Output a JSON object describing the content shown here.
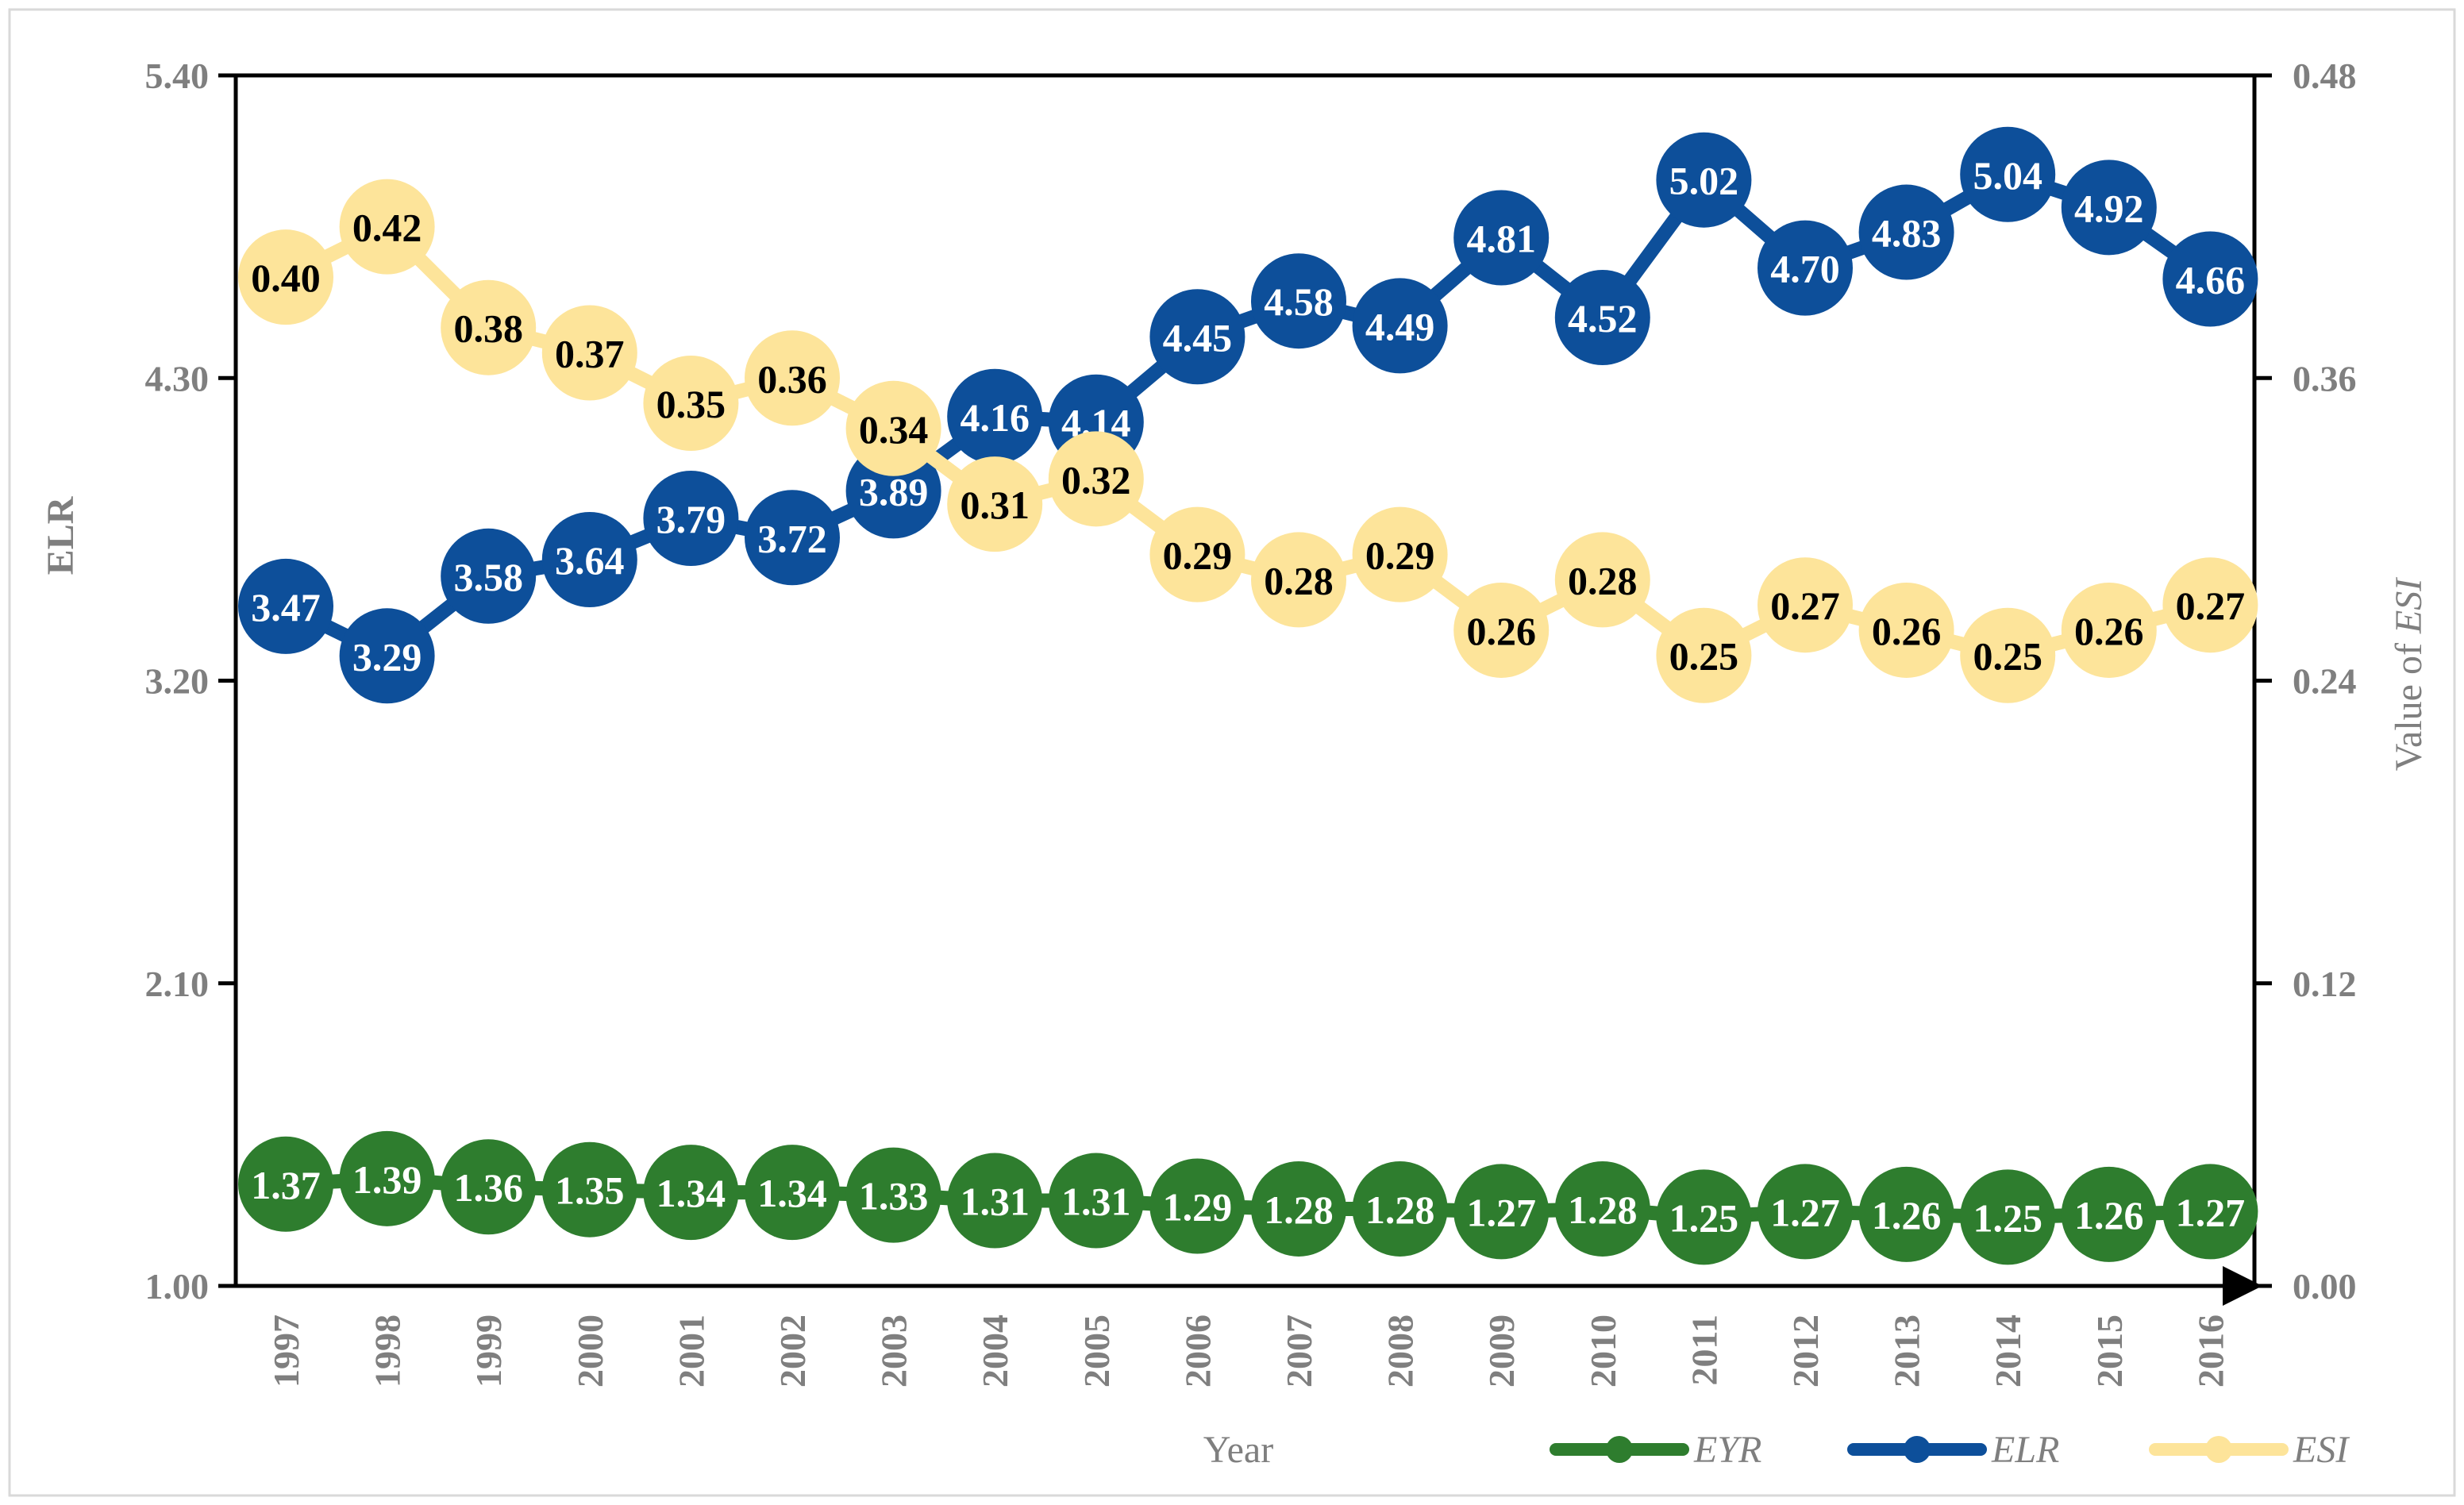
{
  "chart_data": {
    "type": "line",
    "categories": [
      "1997",
      "1998",
      "1999",
      "2000",
      "2001",
      "2002",
      "2003",
      "2004",
      "2005",
      "2006",
      "2007",
      "2008",
      "2009",
      "2010",
      "2011",
      "2012",
      "2013",
      "2014",
      "2015",
      "2016"
    ],
    "xlabel": "Year",
    "ylabel": "ELR",
    "ylabel_right_prefix": "Value of ",
    "ylabel_right_emph": "ESI",
    "y_left": {
      "min": 1.0,
      "max": 5.4,
      "ticks": [
        "1.00",
        "2.10",
        "3.20",
        "4.30",
        "5.40"
      ]
    },
    "y_right": {
      "min": 0.0,
      "max": 0.48,
      "ticks": [
        "0.00",
        "0.12",
        "0.24",
        "0.36",
        "0.48"
      ]
    },
    "series": [
      {
        "name": "EYR",
        "axis": "left",
        "color": "#2e7d2e",
        "label_color": "#ffffff",
        "values": [
          1.37,
          1.39,
          1.36,
          1.35,
          1.34,
          1.34,
          1.33,
          1.31,
          1.31,
          1.29,
          1.28,
          1.28,
          1.27,
          1.28,
          1.25,
          1.27,
          1.26,
          1.25,
          1.26,
          1.27
        ],
        "labels": [
          "1.37",
          "1.39",
          "1.36",
          "1.35",
          "1.34",
          "1.34",
          "1.33",
          "1.31",
          "1.31",
          "1.29",
          "1.28",
          "1.28",
          "1.27",
          "1.28",
          "1.25",
          "1.27",
          "1.26",
          "1.25",
          "1.26",
          "1.27"
        ]
      },
      {
        "name": "ELR",
        "axis": "left",
        "color": "#0d4f9a",
        "label_color": "#ffffff",
        "values": [
          3.47,
          3.29,
          3.58,
          3.64,
          3.79,
          3.72,
          3.89,
          4.16,
          4.14,
          4.45,
          4.58,
          4.49,
          4.81,
          4.52,
          5.02,
          4.7,
          4.83,
          5.04,
          4.92,
          4.66
        ],
        "labels": [
          "3.47",
          "3.29",
          "3.58",
          "3.64",
          "3.79",
          "3.72",
          "3.89",
          "4.16",
          "4.14",
          "4.45",
          "4.58",
          "4.49",
          "4.81",
          "4.52",
          "5.02",
          "4.70",
          "4.83",
          "5.04",
          "4.92",
          "4.66"
        ]
      },
      {
        "name": "ESI",
        "axis": "right",
        "color": "#fde49a",
        "label_color": "#000000",
        "values": [
          0.4,
          0.42,
          0.38,
          0.37,
          0.35,
          0.36,
          0.34,
          0.31,
          0.32,
          0.29,
          0.28,
          0.29,
          0.26,
          0.28,
          0.25,
          0.27,
          0.26,
          0.25,
          0.26,
          0.27
        ],
        "labels": [
          "0.40",
          "0.42",
          "0.38",
          "0.37",
          "0.35",
          "0.36",
          "0.34",
          "0.31",
          "0.32",
          "0.29",
          "0.28",
          "0.29",
          "0.26",
          "0.28",
          "0.25",
          "0.27",
          "0.26",
          "0.25",
          "0.26",
          "0.27"
        ]
      }
    ],
    "legend": [
      "EYR",
      "ELR",
      "ESI"
    ]
  }
}
